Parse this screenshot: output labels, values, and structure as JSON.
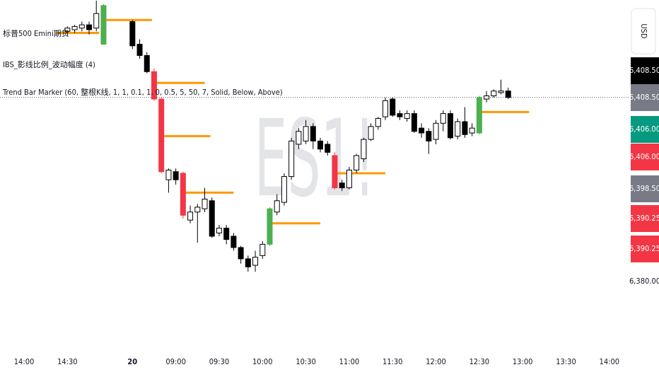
{
  "chart_data": {
    "type": "candlestick",
    "watermark": "ES1!",
    "currency": "USD",
    "legend": [
      "标普500 Emini期货",
      "IBS_影线比例_波动幅度 (4)",
      "Trend Bar Marker (60, 整根K线, 1, 1, 0.1, 1, 0, 0.5, 5, 50, 7, Solid, Below, Above)"
    ],
    "xlim": [
      -3.33,
      83.76
    ],
    "ylim": [
      6371,
      6423.6
    ],
    "xticks": [
      {
        "value": 0,
        "label": "14:00"
      },
      {
        "value": 6,
        "label": "14:30"
      },
      {
        "value": 15,
        "label": "20"
      },
      {
        "value": 21,
        "label": "09:00"
      },
      {
        "value": 27,
        "label": "09:30"
      },
      {
        "value": 33,
        "label": "10:00"
      },
      {
        "value": 39,
        "label": "10:30"
      },
      {
        "value": 45,
        "label": "11:00"
      },
      {
        "value": 51,
        "label": "11:30"
      },
      {
        "value": 57,
        "label": "12:00"
      },
      {
        "value": 63,
        "label": "12:30"
      },
      {
        "value": 69,
        "label": "13:00"
      },
      {
        "value": 75,
        "label": "13:30"
      },
      {
        "value": 81,
        "label": "14:00"
      }
    ],
    "yticks": [
      {
        "value": 6380,
        "label": "6,380.00"
      }
    ],
    "x": [
      6,
      7,
      8,
      9,
      10,
      11,
      15,
      16,
      17,
      18,
      19,
      20,
      21,
      22,
      23,
      24,
      25,
      26,
      27,
      28,
      29,
      30,
      31,
      32,
      33,
      34,
      35,
      36,
      37,
      38,
      39,
      40,
      41,
      42,
      43,
      44,
      45,
      46,
      47,
      48,
      49,
      50,
      51,
      52,
      53,
      54,
      55,
      56,
      57,
      58,
      59,
      60,
      61,
      62,
      63,
      64,
      65,
      66,
      67
    ],
    "open": [
      6418.75,
      6419.0,
      6419.25,
      6419.75,
      6419.25,
      6416.75,
      6420.25,
      6416.75,
      6415.0,
      6412.5,
      6408.25,
      6395.75,
      6397.0,
      6396.75,
      6389.5,
      6390.75,
      6391.25,
      6392.5,
      6387.5,
      6388.25,
      6387.0,
      6385.25,
      6383.5,
      6382.5,
      6384.0,
      6385.75,
      6390.75,
      6392.25,
      6396.25,
      6401.25,
      6401.75,
      6404.0,
      6401.75,
      6401.25,
      6399.5,
      6395.25,
      6394.5,
      6397.25,
      6399.0,
      6402.0,
      6404.0,
      6405.5,
      6408.25,
      6406.0,
      6405.25,
      6406.0,
      6403.75,
      6403.25,
      6402.0,
      6404.5,
      6406.0,
      6402.5,
      6404.75,
      6403.0,
      6403.0,
      6408.25,
      6408.75,
      6409.25,
      6409.5
    ],
    "high": [
      6419.5,
      6419.75,
      6420.25,
      6420.25,
      6423.5,
      6423.0,
      6420.5,
      6417.5,
      6415.5,
      6413.0,
      6408.5,
      6397.5,
      6397.5,
      6397.0,
      6391.75,
      6392.0,
      6394.5,
      6393.0,
      6388.75,
      6388.75,
      6387.5,
      6385.5,
      6384.0,
      6384.75,
      6386.25,
      6391.5,
      6393.5,
      6396.75,
      6402.25,
      6403.75,
      6405.0,
      6404.5,
      6402.25,
      6401.75,
      6400.0,
      6395.75,
      6397.75,
      6399.75,
      6402.25,
      6404.5,
      6405.5,
      6408.5,
      6408.5,
      6406.5,
      6406.5,
      6406.5,
      6404.5,
      6403.75,
      6405.0,
      6406.5,
      6406.5,
      6405.25,
      6407.0,
      6404.5,
      6408.75,
      6409.5,
      6409.75,
      6411.25,
      6410.0
    ],
    "low": [
      6418.0,
      6418.5,
      6418.75,
      6418.25,
      6418.75,
      6416.75,
      6416.0,
      6414.5,
      6412.25,
      6408.0,
      6396.75,
      6393.75,
      6395.0,
      6389.75,
      6389.0,
      6386.0,
      6390.75,
      6386.75,
      6387.0,
      6385.75,
      6384.75,
      6382.75,
      6381.5,
      6381.5,
      6383.5,
      6385.5,
      6390.25,
      6391.75,
      6395.75,
      6400.5,
      6401.25,
      6400.5,
      6400.0,
      6399.5,
      6394.25,
      6394.0,
      6394.25,
      6396.75,
      6398.5,
      6401.75,
      6403.5,
      6405.0,
      6405.5,
      6405.0,
      6404.75,
      6403.0,
      6402.25,
      6399.75,
      6401.25,
      6403.25,
      6402.0,
      6402.0,
      6402.25,
      6402.5,
      6402.75,
      6407.75,
      6408.5,
      6409.0,
      6408.25
    ],
    "close": [
      6419.25,
      6419.5,
      6419.75,
      6419.0,
      6421.5,
      6422.75,
      6416.5,
      6415.0,
      6412.5,
      6408.25,
      6397.0,
      6397.25,
      6395.75,
      6390.25,
      6390.75,
      6391.5,
      6392.75,
      6387.0,
      6388.25,
      6386.5,
      6385.25,
      6383.5,
      6382.25,
      6383.75,
      6385.75,
      6391.25,
      6392.5,
      6396.25,
      6401.75,
      6403.25,
      6404.0,
      6401.75,
      6400.5,
      6400.0,
      6394.5,
      6394.5,
      6397.25,
      6399.5,
      6402.0,
      6404.0,
      6405.25,
      6408.0,
      6405.75,
      6405.5,
      6406.0,
      6403.25,
      6403.0,
      6401.75,
      6404.5,
      6406.0,
      6402.25,
      6404.75,
      6402.75,
      6403.75,
      6408.5,
      6408.75,
      6409.5,
      6409.5,
      6408.5
    ],
    "colors": [
      "#ffffff",
      "#ffffff",
      "#ffffff",
      "#000000",
      "#ffffff",
      "#4caf50",
      "#000000",
      "#000000",
      "#000000",
      "#f23645",
      "#f23645",
      "#ffffff",
      "#000000",
      "#f23645",
      "#ffffff",
      "#ffffff",
      "#ffffff",
      "#000000",
      "#ffffff",
      "#000000",
      "#000000",
      "#000000",
      "#000000",
      "#ffffff",
      "#ffffff",
      "#4caf50",
      "#ffffff",
      "#ffffff",
      "#ffffff",
      "#ffffff",
      "#ffffff",
      "#000000",
      "#000000",
      "#000000",
      "#f23645",
      "#000000",
      "#ffffff",
      "#ffffff",
      "#ffffff",
      "#ffffff",
      "#ffffff",
      "#ffffff",
      "#000000",
      "#000000",
      "#ffffff",
      "#000000",
      "#000000",
      "#000000",
      "#ffffff",
      "#ffffff",
      "#000000",
      "#ffffff",
      "#000000",
      "#ffffff",
      "#4caf50",
      "#ffffff",
      "#ffffff",
      "#ffffff",
      "#000000"
    ],
    "level_color": "#ff9800",
    "levels": [
      {
        "start": 4.5,
        "end": 10.4,
        "price": 6418.5
      },
      {
        "start": 11.4,
        "end": 17.7,
        "price": 6420.5
      },
      {
        "start": 18.2,
        "end": 25,
        "price": 6410.75
      },
      {
        "start": 19.4,
        "end": 25.8,
        "price": 6402.5
      },
      {
        "start": 22.3,
        "end": 29,
        "price": 6393.75
      },
      {
        "start": 34.3,
        "end": 41,
        "price": 6389.0
      },
      {
        "start": 43.4,
        "end": 50,
        "price": 6396.75
      },
      {
        "start": 63.2,
        "end": 69.9,
        "price": 6406.25
      }
    ],
    "price_tags": [
      {
        "value": 6408.5,
        "label": "6,408.50",
        "color": "#000000"
      },
      {
        "value": 6408.5,
        "label": "6,408.50",
        "color": "#787b86"
      },
      {
        "value": 6406,
        "label": "6,406.00",
        "color": "#089981"
      },
      {
        "value": 6406,
        "label": "6,406.00",
        "color": "#f23645"
      },
      {
        "value": 6398.5,
        "label": "6,398.50",
        "color": "#787b86"
      },
      {
        "value": 6390.25,
        "label": "6,390.25",
        "color": "#f23645"
      },
      {
        "value": 6390.25,
        "label": "6,390.25",
        "color": "#f23645"
      }
    ]
  }
}
